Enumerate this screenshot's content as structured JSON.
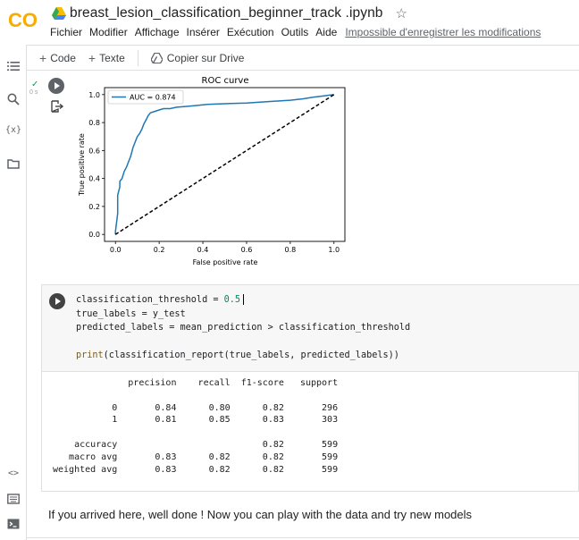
{
  "app": {
    "logo_text": "CO",
    "notebook_title": "breast_lesion_classification_beginner_track .ipynb"
  },
  "menu": {
    "items": [
      "Fichier",
      "Modifier",
      "Affichage",
      "Insérer",
      "Exécution",
      "Outils",
      "Aide"
    ],
    "unsaved_notice": "Impossible d'enregistrer les modifications"
  },
  "toolbar": {
    "code_label": "Code",
    "text_label": "Texte",
    "copy_drive_label": "Copier sur Drive"
  },
  "rail": {
    "icons": [
      "toc-icon",
      "search-icon",
      "variables-icon",
      "files-icon",
      "code-snippets-icon",
      "command-palette-icon",
      "terminal-icon"
    ],
    "variables_glyph": "{x}",
    "snippets_glyph": "<>"
  },
  "roc_cell": {
    "status_check": "✓",
    "exec_time": "0 s"
  },
  "chart_data": {
    "type": "line",
    "title": "ROC curve",
    "xlabel": "False positive rate",
    "ylabel": "True positive rate",
    "xlim": [
      0,
      1
    ],
    "ylim": [
      0,
      1
    ],
    "xticks": [
      "0.0",
      "0.2",
      "0.4",
      "0.6",
      "0.8",
      "1.0"
    ],
    "yticks": [
      "0.0",
      "0.2",
      "0.4",
      "0.6",
      "0.8",
      "1.0"
    ],
    "legend_position": "top-left",
    "grid": false,
    "series": [
      {
        "name": "AUC = 0.874",
        "color": "#1f77b4",
        "style": "solid",
        "x": [
          0.0,
          0.0,
          0.01,
          0.01,
          0.02,
          0.02,
          0.03,
          0.04,
          0.05,
          0.06,
          0.07,
          0.08,
          0.09,
          0.1,
          0.11,
          0.12,
          0.13,
          0.14,
          0.15,
          0.16,
          0.18,
          0.2,
          0.22,
          0.25,
          0.28,
          0.32,
          0.36,
          0.42,
          0.5,
          0.6,
          0.7,
          0.8,
          0.86,
          0.9,
          0.95,
          1.0
        ],
        "y": [
          0.0,
          0.02,
          0.15,
          0.28,
          0.34,
          0.38,
          0.4,
          0.45,
          0.48,
          0.52,
          0.56,
          0.62,
          0.66,
          0.7,
          0.72,
          0.75,
          0.79,
          0.82,
          0.85,
          0.87,
          0.88,
          0.89,
          0.9,
          0.9,
          0.91,
          0.915,
          0.92,
          0.93,
          0.935,
          0.94,
          0.95,
          0.96,
          0.97,
          0.98,
          0.99,
          1.0
        ]
      },
      {
        "name": "",
        "color": "#000000",
        "style": "dashed",
        "x": [
          0.0,
          1.0
        ],
        "y": [
          0.0,
          1.0
        ]
      }
    ]
  },
  "code_cell": {
    "lines": [
      "classification_threshold = 0.5",
      "true_labels = y_test",
      "predicted_labels = mean_prediction > classification_threshold",
      "",
      "print(classification_report(true_labels, predicted_labels))"
    ],
    "output_lines": [
      "              precision    recall  f1-score   support",
      "",
      "           0       0.84      0.80      0.82       296",
      "           1       0.81      0.85      0.83       303",
      "",
      "    accuracy                           0.82       599",
      "   macro avg       0.83      0.82      0.82       599",
      "weighted avg       0.83      0.82      0.82       599"
    ]
  },
  "text_cell": {
    "text": "If you arrived here, well done ! Now you can play with the data and try new models"
  }
}
